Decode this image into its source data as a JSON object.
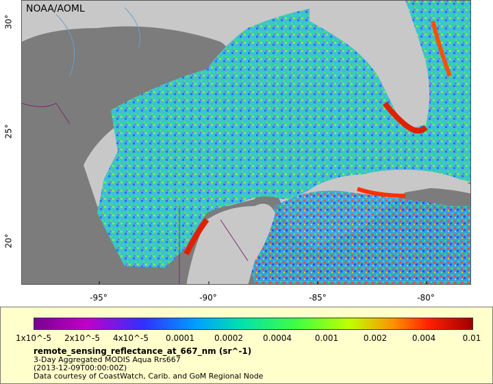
{
  "map": {
    "credit": "NOAA/AOML",
    "x_ticks": [
      "-95°",
      "-90°",
      "-85°",
      "-80°"
    ],
    "y_ticks": [
      "30°",
      "25°",
      "20°"
    ],
    "colors": {
      "ocean_nodata": "#7c7c7c",
      "land": "#c8c8c8",
      "rivers": "#6a9fd0",
      "borders": "#7a2a6a"
    }
  },
  "legend": {
    "colorbar_labels": [
      "1x10^-5",
      "2x10^-5",
      "4x10^-5",
      "0.0001",
      "0.0002",
      "0.0004",
      "0.001",
      "0.002",
      "0.004",
      "0.01"
    ],
    "variable": "remote_sensing_reflectance_at_667_nm (sr^-1)",
    "dataset": "3-Day Aggregated MODIS Aqua Rrs667",
    "time": "(2013-12-09T00:00:00Z)",
    "courtesy": "Data courtesy of CoastWatch, Carib. and GoM Regional Node"
  }
}
